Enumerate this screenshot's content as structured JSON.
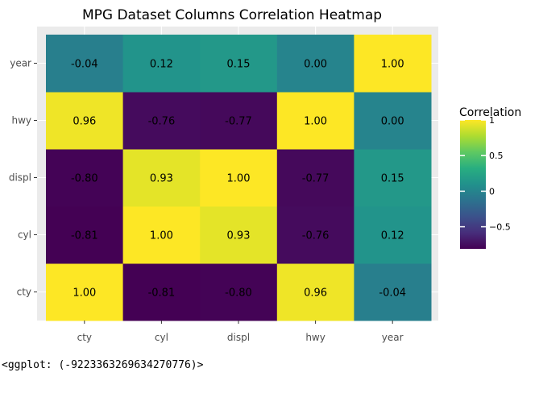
{
  "chart_data": {
    "type": "heatmap",
    "title": "MPG Dataset Columns Correlation Heatmap",
    "xlabel": "",
    "ylabel": "",
    "x_categories": [
      "cty",
      "cyl",
      "displ",
      "hwy",
      "year"
    ],
    "y_categories": [
      "cty",
      "cyl",
      "displ",
      "hwy",
      "year"
    ],
    "values": [
      [
        1.0,
        -0.81,
        -0.8,
        0.96,
        -0.04
      ],
      [
        -0.81,
        1.0,
        0.93,
        -0.76,
        0.12
      ],
      [
        -0.8,
        0.93,
        1.0,
        -0.77,
        0.15
      ],
      [
        0.96,
        -0.76,
        -0.77,
        1.0,
        0.0
      ],
      [
        -0.04,
        0.12,
        0.15,
        0.0,
        1.0
      ]
    ],
    "cell_labels": [
      [
        "1.00",
        "-0.81",
        "-0.80",
        "0.96",
        "-0.04"
      ],
      [
        "-0.81",
        "1.00",
        "0.93",
        "-0.76",
        "0.12"
      ],
      [
        "-0.80",
        "0.93",
        "1.00",
        "-0.77",
        "0.15"
      ],
      [
        "0.96",
        "-0.76",
        "-0.77",
        "1.00",
        "0.00"
      ],
      [
        "-0.04",
        "0.12",
        "0.15",
        "0.00",
        "1.00"
      ]
    ],
    "colormap": "viridis",
    "color_range": [
      -0.81,
      1.0
    ],
    "legend": {
      "title": "Correlation",
      "placement": "right",
      "ticks": [
        1,
        0.5,
        0,
        -0.5
      ],
      "tick_labels": [
        "1",
        "0.5",
        "0",
        "−0.5"
      ]
    },
    "colors": {
      "panel_background": "#ebebeb",
      "axis_text": "#4d4d4d"
    }
  },
  "console_output": "<ggplot: (-9223363269634270776)>"
}
